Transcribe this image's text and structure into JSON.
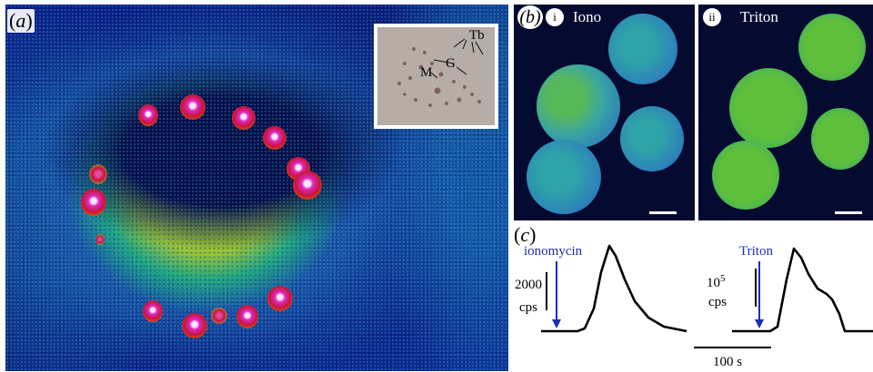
{
  "panel_labels": {
    "a": "a",
    "b": "b",
    "c": "c"
  },
  "panel_b": {
    "sub_i": {
      "numeral": "i",
      "label": "Iono"
    },
    "sub_ii": {
      "numeral": "ii",
      "label": "Triton"
    }
  },
  "inset": {
    "label_tb": "Tb",
    "label_g": "G",
    "label_m": "M"
  },
  "panel_c": {
    "trace1": {
      "arrow_label": "ionomycin",
      "scale_value": "2000",
      "scale_unit": "cps"
    },
    "trace2": {
      "arrow_label": "Triton",
      "scale_base": "10",
      "scale_exp": "5",
      "scale_unit": "cps"
    },
    "time_scale": "100 s"
  },
  "colors": {
    "annotation_blue": "#1b2fb0",
    "false_color_low": "#0a1f8c",
    "false_color_mid": "#22b878",
    "false_color_high": "#c8143f",
    "sphere_green": "#5fbf3a"
  },
  "icons": {
    "arrow": "down-arrow-icon",
    "scalebar": "scale-bar-icon"
  }
}
